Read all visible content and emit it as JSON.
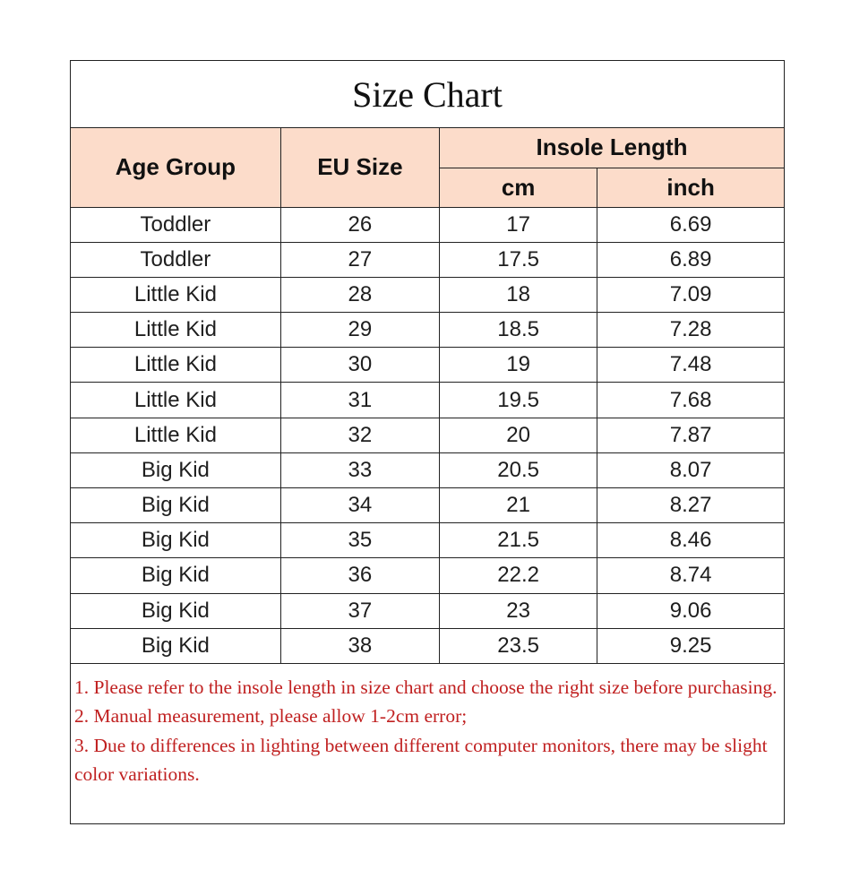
{
  "title": "Size Chart",
  "header": {
    "age_group": "Age Group",
    "eu_size": "EU Size",
    "insole_length": "Insole Length",
    "cm": "cm",
    "inch": "inch"
  },
  "rows": [
    {
      "age": "Toddler",
      "eu": "26",
      "cm": "17",
      "inch": "6.69"
    },
    {
      "age": "Toddler",
      "eu": "27",
      "cm": "17.5",
      "inch": "6.89"
    },
    {
      "age": "Little Kid",
      "eu": "28",
      "cm": "18",
      "inch": "7.09"
    },
    {
      "age": "Little Kid",
      "eu": "29",
      "cm": "18.5",
      "inch": "7.28"
    },
    {
      "age": "Little Kid",
      "eu": "30",
      "cm": "19",
      "inch": "7.48"
    },
    {
      "age": "Little Kid",
      "eu": "31",
      "cm": "19.5",
      "inch": "7.68"
    },
    {
      "age": "Little Kid",
      "eu": "32",
      "cm": "20",
      "inch": "7.87"
    },
    {
      "age": "Big Kid",
      "eu": "33",
      "cm": "20.5",
      "inch": "8.07"
    },
    {
      "age": "Big Kid",
      "eu": "34",
      "cm": "21",
      "inch": "8.27"
    },
    {
      "age": "Big Kid",
      "eu": "35",
      "cm": "21.5",
      "inch": "8.46"
    },
    {
      "age": "Big Kid",
      "eu": "36",
      "cm": "22.2",
      "inch": "8.74"
    },
    {
      "age": "Big Kid",
      "eu": "37",
      "cm": "23",
      "inch": "9.06"
    },
    {
      "age": "Big Kid",
      "eu": "38",
      "cm": "23.5",
      "inch": "9.25"
    }
  ],
  "notes": [
    "1. Please refer to the insole length in  size chart and choose the right size before purchasing.",
    "2. Manual measurement, please allow 1-2cm error;",
    "3. Due to differences in lighting between different computer monitors, there may be slight color variations."
  ],
  "colors": {
    "header_bg": "#fcdcca",
    "note_text": "#c02020",
    "border": "#222222"
  }
}
